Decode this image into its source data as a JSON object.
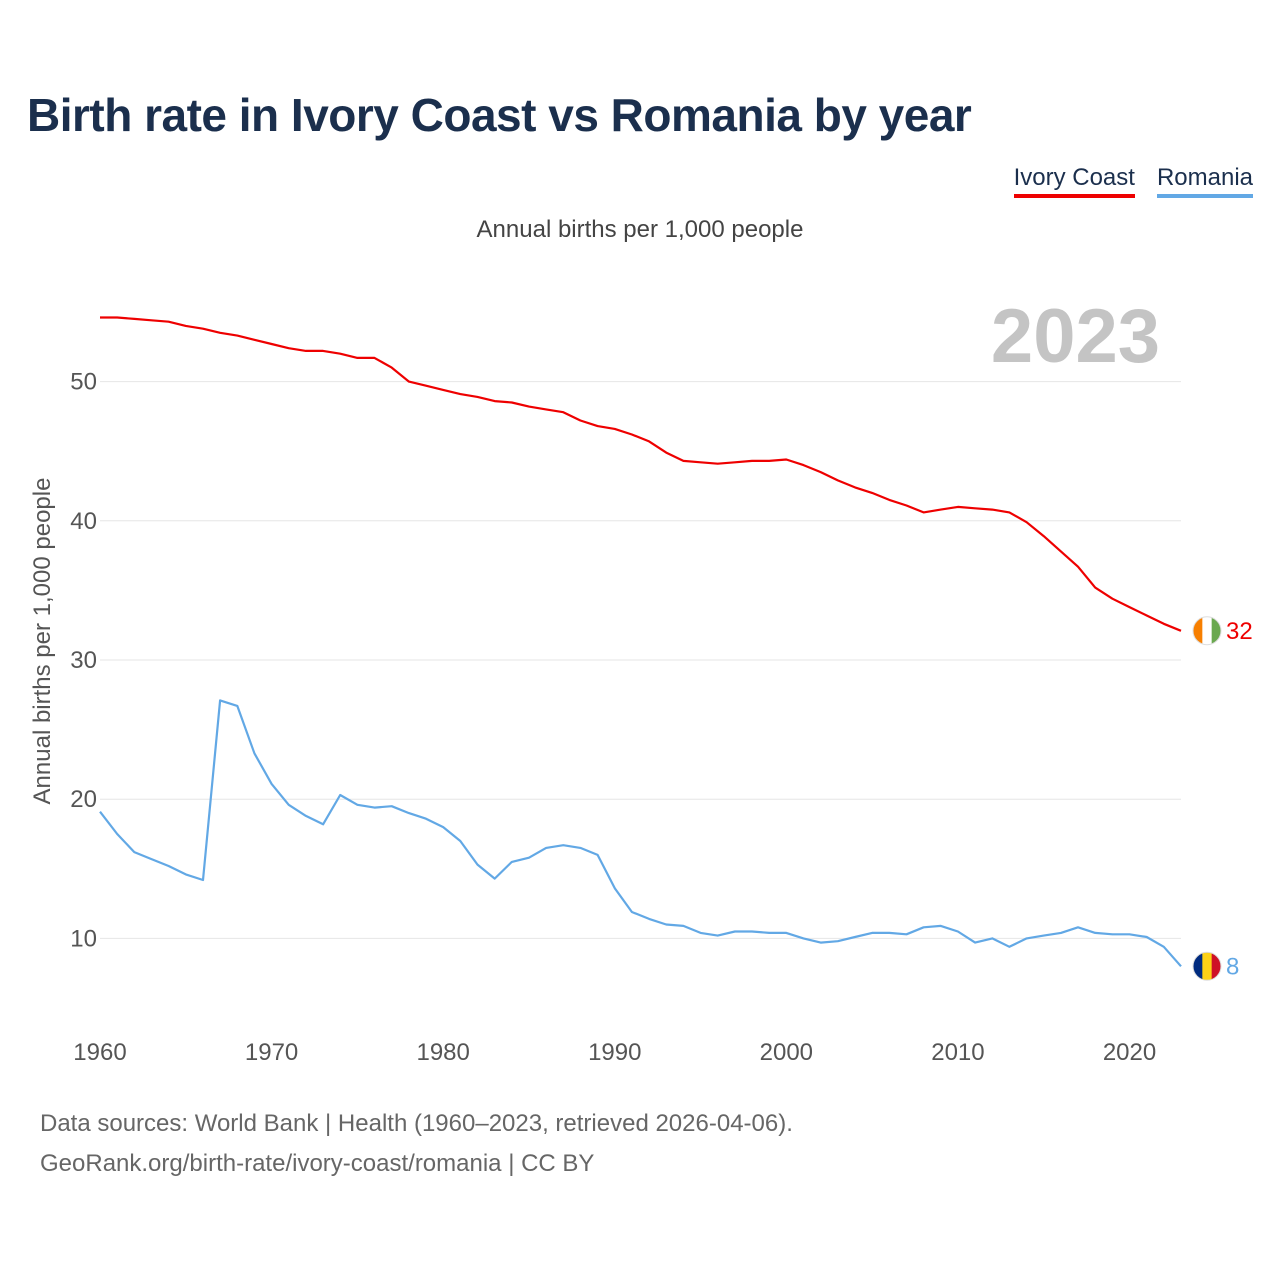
{
  "title": "Birth rate in Ivory Coast vs Romania by year",
  "subtitle": "Annual births per 1,000 people",
  "legend": [
    "Ivory Coast",
    "Romania"
  ],
  "footer": {
    "line1": "Data sources: World Bank | Health (1960–2023, retrieved 2026-04-06).",
    "line2": "GeoRank.org/birth-rate/ivory-coast/romania | CC BY"
  },
  "chart_data": {
    "type": "line",
    "title": "Birth rate in Ivory Coast vs Romania by year",
    "ylabel": "Annual births per 1,000 people",
    "xlabel": "",
    "year_label": "2023",
    "xlim": [
      1960,
      2023
    ],
    "ylim": [
      4.5,
      55.5
    ],
    "x_ticks": [
      1960,
      1970,
      1980,
      1990,
      2000,
      2010,
      2020
    ],
    "y_ticks": [
      10,
      20,
      30,
      40,
      50
    ],
    "grid": true,
    "x": [
      1960,
      1961,
      1962,
      1963,
      1964,
      1965,
      1966,
      1967,
      1968,
      1969,
      1970,
      1971,
      1972,
      1973,
      1974,
      1975,
      1976,
      1977,
      1978,
      1979,
      1980,
      1981,
      1982,
      1983,
      1984,
      1985,
      1986,
      1987,
      1988,
      1989,
      1990,
      1991,
      1992,
      1993,
      1994,
      1995,
      1996,
      1997,
      1998,
      1999,
      2000,
      2001,
      2002,
      2003,
      2004,
      2005,
      2006,
      2007,
      2008,
      2009,
      2010,
      2011,
      2012,
      2013,
      2014,
      2015,
      2016,
      2017,
      2018,
      2019,
      2020,
      2021,
      2022,
      2023
    ],
    "series": [
      {
        "name": "Ivory Coast",
        "color": "#ee0000",
        "end_label": "32",
        "values": [
          54.6,
          54.6,
          54.5,
          54.4,
          54.3,
          54.0,
          53.8,
          53.5,
          53.3,
          53.0,
          52.7,
          52.4,
          52.2,
          52.2,
          52.0,
          51.7,
          51.7,
          51.0,
          50.0,
          49.7,
          49.4,
          49.1,
          48.9,
          48.6,
          48.5,
          48.2,
          48.0,
          47.8,
          47.2,
          46.8,
          46.6,
          46.2,
          45.7,
          44.9,
          44.3,
          44.2,
          44.1,
          44.2,
          44.3,
          44.3,
          44.4,
          44.0,
          43.5,
          42.9,
          42.4,
          42.0,
          41.5,
          41.1,
          40.6,
          40.8,
          41.0,
          40.9,
          40.8,
          40.6,
          39.9,
          38.9,
          37.8,
          36.7,
          35.2,
          34.4,
          33.8,
          33.2,
          32.6,
          32.1
        ]
      },
      {
        "name": "Romania",
        "color": "#62a8e5",
        "end_label": "8",
        "values": [
          19.1,
          17.5,
          16.2,
          15.7,
          15.2,
          14.6,
          14.2,
          27.1,
          26.7,
          23.3,
          21.1,
          19.6,
          18.8,
          18.2,
          20.3,
          19.6,
          19.4,
          19.5,
          19.0,
          18.6,
          18.0,
          17.0,
          15.3,
          14.3,
          15.5,
          15.8,
          16.5,
          16.7,
          16.5,
          16.0,
          13.6,
          11.9,
          11.4,
          11.0,
          10.9,
          10.4,
          10.2,
          10.5,
          10.5,
          10.4,
          10.4,
          10.0,
          9.7,
          9.8,
          10.1,
          10.4,
          10.4,
          10.3,
          10.8,
          10.9,
          10.5,
          9.7,
          10.0,
          9.4,
          10.0,
          10.2,
          10.4,
          10.8,
          10.4,
          10.3,
          10.3,
          10.1,
          9.4,
          8.0
        ]
      }
    ]
  },
  "flags": {
    "ivory_coast": [
      "#f77f00",
      "#ffffff",
      "#6aa84f"
    ],
    "romania": [
      "#002b7f",
      "#fcd116",
      "#ce1126"
    ]
  }
}
